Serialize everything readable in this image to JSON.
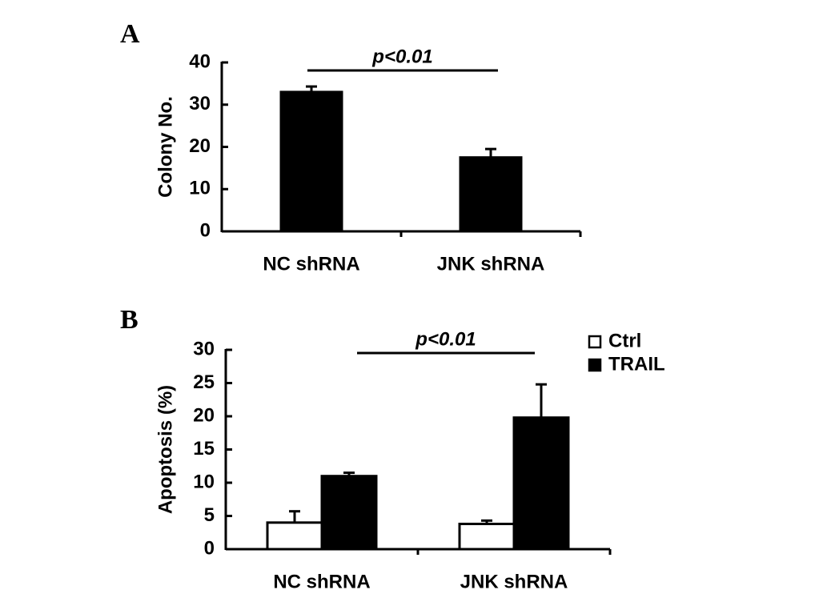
{
  "chart_data": [
    {
      "type": "bar",
      "label": "A",
      "ylabel": "Colony No.",
      "annotation": "p<0.01",
      "categories": [
        "NC shRNA",
        "JNK shRNA"
      ],
      "values": [
        33,
        17.5
      ],
      "errors": [
        1.3,
        2
      ],
      "color": "#000000",
      "ylim": [
        0,
        40
      ],
      "yticks": [
        0,
        10,
        20,
        30,
        40
      ]
    },
    {
      "type": "grouped-bar",
      "label": "B",
      "ylabel": "Apoptosis (%)",
      "annotation": "p<0.01",
      "categories": [
        "NC shRNA",
        "JNK shRNA"
      ],
      "series": [
        {
          "name": "Ctrl",
          "color": "#ffffff",
          "values": [
            4,
            3.8
          ],
          "errors": [
            1.7,
            0.5
          ]
        },
        {
          "name": "TRAIL",
          "color": "#000000",
          "values": [
            11,
            19.8
          ],
          "errors": [
            0.5,
            5
          ]
        }
      ],
      "legend": "top-right",
      "ylim": [
        0,
        30
      ],
      "yticks": [
        0,
        5,
        10,
        15,
        20,
        25,
        30
      ]
    }
  ]
}
